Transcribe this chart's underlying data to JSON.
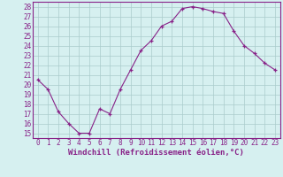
{
  "x": [
    0,
    1,
    2,
    3,
    4,
    5,
    6,
    7,
    8,
    9,
    10,
    11,
    12,
    13,
    14,
    15,
    16,
    17,
    18,
    19,
    20,
    21,
    22,
    23
  ],
  "y": [
    20.5,
    19.5,
    17.2,
    16.0,
    15.0,
    15.0,
    17.5,
    17.0,
    19.5,
    21.5,
    23.5,
    24.5,
    26.0,
    26.5,
    27.8,
    28.0,
    27.8,
    27.5,
    27.3,
    25.5,
    24.0,
    23.2,
    22.2,
    21.5
  ],
  "line_color": "#882288",
  "marker": "+",
  "marker_size": 3,
  "bg_color": "#d6f0f0",
  "grid_color": "#aacccc",
  "xlabel": "Windchill (Refroidissement éolien,°C)",
  "ylabel_ticks": [
    15,
    16,
    17,
    18,
    19,
    20,
    21,
    22,
    23,
    24,
    25,
    26,
    27,
    28
  ],
  "xlim": [
    -0.5,
    23.5
  ],
  "ylim": [
    14.5,
    28.5
  ],
  "tick_fontsize": 5.5,
  "xlabel_fontsize": 6.5,
  "linewidth": 0.8
}
